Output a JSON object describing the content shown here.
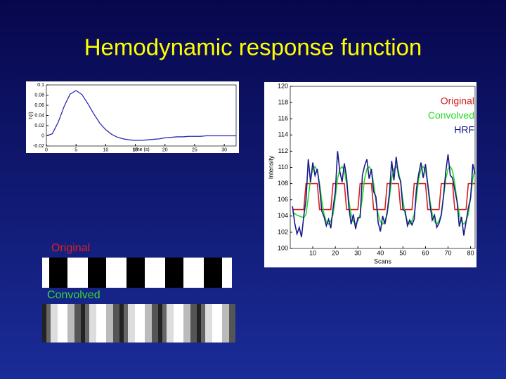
{
  "title": "Hemodynamic response function",
  "strips": [
    {
      "label": "Original"
    },
    {
      "label": "Convolved"
    }
  ],
  "chart_data": [
    {
      "type": "line",
      "xlabel": "time (s)",
      "ylabel": "h(t)",
      "x": [
        0,
        1,
        2,
        3,
        4,
        5,
        6,
        7,
        8,
        9,
        10,
        11,
        12,
        13,
        14,
        15,
        16,
        17,
        18,
        19,
        20,
        21,
        22,
        23,
        24,
        25,
        26,
        27,
        28,
        29,
        30,
        31,
        32
      ],
      "series": [
        {
          "name": "HRF",
          "color": "#2a2ab0",
          "values": [
            0,
            0.004,
            0.027,
            0.058,
            0.082,
            0.089,
            0.081,
            0.063,
            0.043,
            0.025,
            0.012,
            0.003,
            -0.003,
            -0.006,
            -0.008,
            -0.009,
            -0.009,
            -0.008,
            -0.007,
            -0.006,
            -0.004,
            -0.003,
            -0.002,
            -0.002,
            -0.001,
            -0.001,
            -0.001,
            0,
            0,
            0,
            0,
            0,
            0
          ]
        }
      ],
      "xlim": [
        0,
        32
      ],
      "ylim": [
        -0.02,
        0.1
      ],
      "xticks": [
        0,
        5,
        10,
        15,
        20,
        25,
        30
      ],
      "yticks": [
        -0.02,
        0,
        0.02,
        0.04,
        0.06,
        0.08,
        0.1
      ],
      "legend": false
    },
    {
      "type": "line",
      "xlabel": "Scans",
      "ylabel": "Intensity",
      "x": [
        1,
        2,
        3,
        4,
        5,
        6,
        7,
        8,
        9,
        10,
        11,
        12,
        13,
        14,
        15,
        16,
        17,
        18,
        19,
        20,
        21,
        22,
        23,
        24,
        25,
        26,
        27,
        28,
        29,
        30,
        31,
        32,
        33,
        34,
        35,
        36,
        37,
        38,
        39,
        40,
        41,
        42,
        43,
        44,
        45,
        46,
        47,
        48,
        49,
        50,
        51,
        52,
        53,
        54,
        55,
        56,
        57,
        58,
        59,
        60,
        61,
        62,
        63,
        64,
        65,
        66,
        67,
        68,
        69,
        70,
        71,
        72,
        73,
        74,
        75,
        76,
        77,
        78,
        79,
        80,
        81,
        82
      ],
      "series": [
        {
          "name": "Original",
          "color": "#d42020",
          "values": [
            104.8,
            104.8,
            104.8,
            104.8,
            104.8,
            104.8,
            108,
            108,
            108,
            108,
            108,
            108,
            104.8,
            104.8,
            104.8,
            104.8,
            104.8,
            104.8,
            108,
            108,
            108,
            108,
            108,
            108,
            104.8,
            104.8,
            104.8,
            104.8,
            104.8,
            104.8,
            108,
            108,
            108,
            108,
            108,
            108,
            104.8,
            104.8,
            104.8,
            104.8,
            104.8,
            104.8,
            108,
            108,
            108,
            108,
            108,
            108,
            104.8,
            104.8,
            104.8,
            104.8,
            104.8,
            104.8,
            108,
            108,
            108,
            108,
            108,
            108,
            104.8,
            104.8,
            104.8,
            104.8,
            104.8,
            104.8,
            108,
            108,
            108,
            108,
            108,
            108,
            104.8,
            104.8,
            104.8,
            104.8,
            104.8,
            104.8,
            108,
            108,
            108,
            108
          ]
        },
        {
          "name": "Convolved",
          "color": "#22dd22",
          "values": [
            104.5,
            104.3,
            104.1,
            104.0,
            103.9,
            103.8,
            104.2,
            106.3,
            108.6,
            109.8,
            110.1,
            109.6,
            108.0,
            105.9,
            104.2,
            103.3,
            103.0,
            103.4,
            104.2,
            106.3,
            108.6,
            109.8,
            110.1,
            109.6,
            108.0,
            105.9,
            104.2,
            103.3,
            103.0,
            103.4,
            104.2,
            106.3,
            108.6,
            109.8,
            110.1,
            109.6,
            108.0,
            105.9,
            104.2,
            103.3,
            103.0,
            103.4,
            104.2,
            106.3,
            108.6,
            109.8,
            110.1,
            109.6,
            108.0,
            105.9,
            104.2,
            103.3,
            103.0,
            103.4,
            104.2,
            106.3,
            108.6,
            109.8,
            110.1,
            109.6,
            108.0,
            105.9,
            104.2,
            103.3,
            103.0,
            103.4,
            104.2,
            106.3,
            108.6,
            109.8,
            110.1,
            109.6,
            108.0,
            105.9,
            104.2,
            103.3,
            103.0,
            103.4,
            104.2,
            106.3,
            108.6,
            109.8
          ]
        },
        {
          "name": "HRF",
          "color": "#1a1a8a",
          "values": [
            105.2,
            103.1,
            101.8,
            102.6,
            101.4,
            104.0,
            106.0,
            111.0,
            108.2,
            110.6,
            109.0,
            109.8,
            107.6,
            104.6,
            103.9,
            102.8,
            103.6,
            102.5,
            105.0,
            107.0,
            112.0,
            109.5,
            108.2,
            110.5,
            108.8,
            105.1,
            103.0,
            104.2,
            102.4,
            103.8,
            103.8,
            109.0,
            110.2,
            111.0,
            108.6,
            109.8,
            107.0,
            106.4,
            103.2,
            102.1,
            104.0,
            103.0,
            104.5,
            106.8,
            110.8,
            108.4,
            111.3,
            109.0,
            108.3,
            104.8,
            104.6,
            102.8,
            103.5,
            102.9,
            103.6,
            107.4,
            109.2,
            110.6,
            108.7,
            110.4,
            107.9,
            105.4,
            103.5,
            104.1,
            102.6,
            103.1,
            104.1,
            106.5,
            109.5,
            111.6,
            109.0,
            108.7,
            107.2,
            105.8,
            102.7,
            103.9,
            101.6,
            103.3,
            105.0,
            106.2,
            110.4,
            109.2
          ]
        }
      ],
      "xlim": [
        0,
        82
      ],
      "ylim": [
        100,
        120
      ],
      "xticks": [
        10,
        20,
        30,
        40,
        50,
        60,
        70,
        80
      ],
      "yticks": [
        100,
        102,
        104,
        106,
        108,
        110,
        112,
        114,
        116,
        118,
        120
      ],
      "legend": "upper right"
    }
  ]
}
